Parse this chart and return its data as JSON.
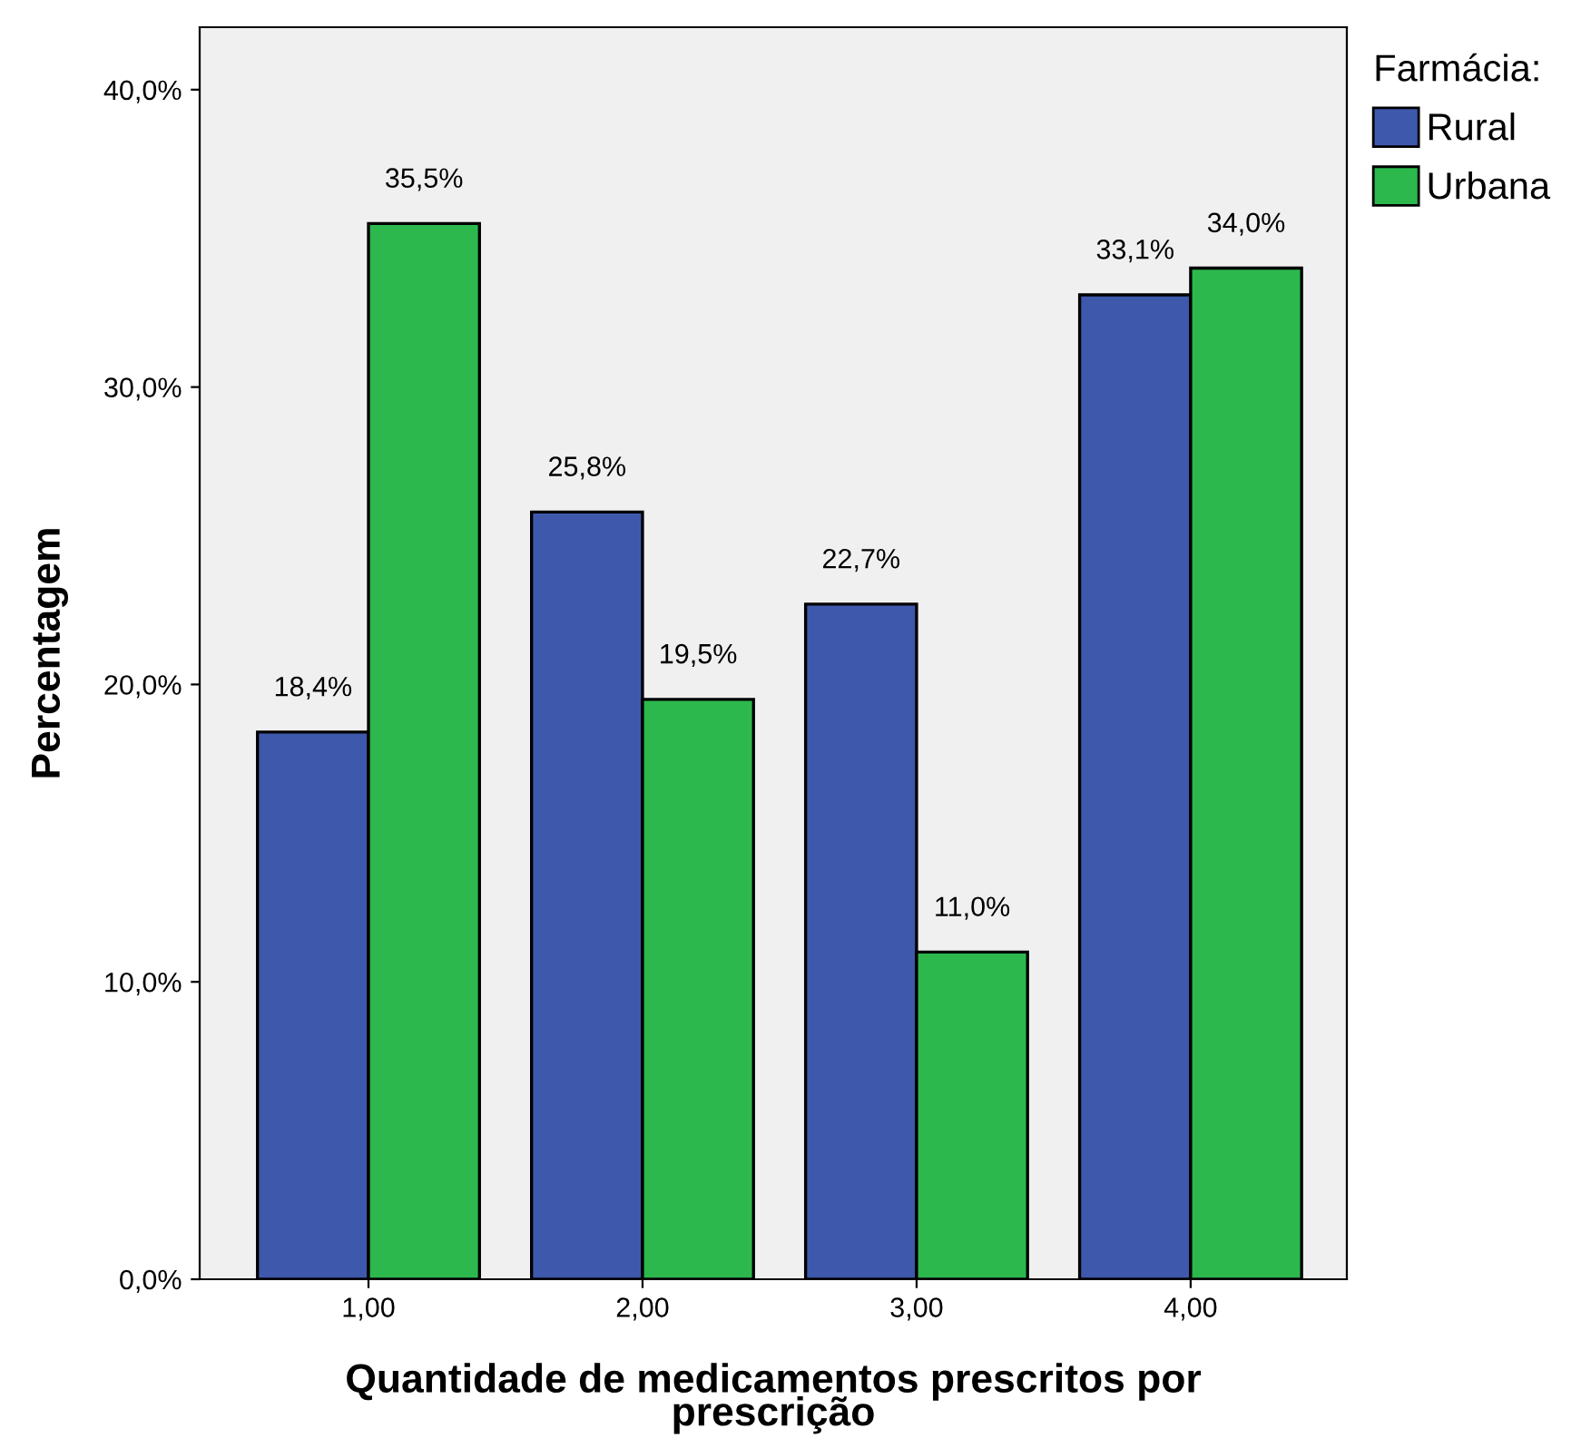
{
  "chart_data": {
    "type": "bar",
    "xlabel": "Quantidade de medicamentos prescritos por\nprescrição",
    "ylabel": "Percentagem",
    "legend_title": "Farmácia:",
    "categories": [
      "1,00",
      "2,00",
      "3,00",
      "4,00"
    ],
    "series": [
      {
        "name": "Rural",
        "color": "#3e58ac",
        "values": [
          18.4,
          25.8,
          22.7,
          33.1
        ],
        "value_labels": [
          "18,4%",
          "25,8%",
          "22,7%",
          "33,1%"
        ]
      },
      {
        "name": "Urbana",
        "color": "#2db84d",
        "values": [
          35.5,
          19.5,
          11.0,
          34.0
        ],
        "value_labels": [
          "35,5%",
          "19,5%",
          "11,0%",
          "34,0%"
        ]
      }
    ],
    "ylim": [
      0,
      42.1
    ],
    "yticks": [
      {
        "value": 0,
        "label": "0,0%"
      },
      {
        "value": 10,
        "label": "10,0%"
      },
      {
        "value": 20,
        "label": "20,0%"
      },
      {
        "value": 30,
        "label": "30,0%"
      },
      {
        "value": 40,
        "label": "40,0%"
      }
    ],
    "grid": false,
    "legend": "top right"
  }
}
